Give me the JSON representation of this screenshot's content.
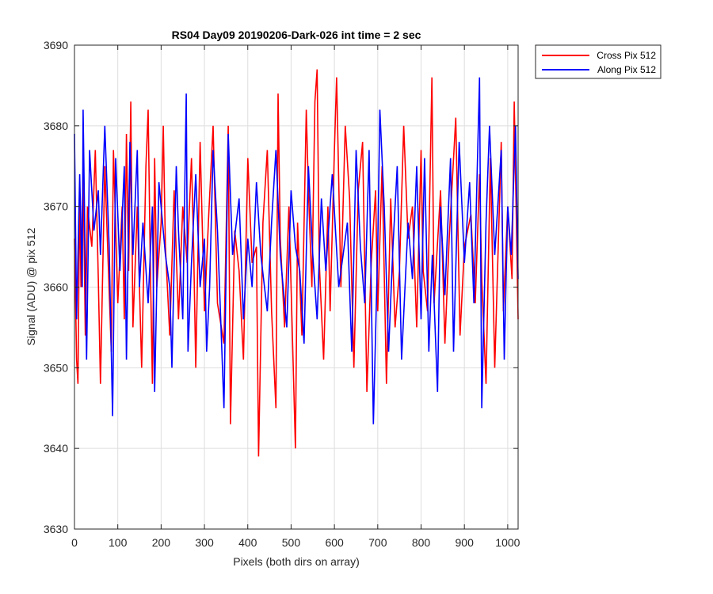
{
  "chart_data": {
    "type": "line",
    "title": "RS04 Day09 20190206-Dark-026 int time = 2 sec",
    "xlabel": "Pixels (both dirs on array)",
    "ylabel": "Signal (ADU) @ pix 512",
    "xlim": [
      0,
      1024
    ],
    "ylim": [
      3630,
      3690
    ],
    "xticks": [
      0,
      100,
      200,
      300,
      400,
      500,
      600,
      700,
      800,
      900,
      1000
    ],
    "yticks": [
      3630,
      3640,
      3650,
      3660,
      3670,
      3680,
      3690
    ],
    "grid": true,
    "legend_position": "outside-top-right",
    "series_mean": 3666,
    "series": [
      {
        "name": "Cross Pix 512",
        "color": "#ff0000",
        "points": [
          [
            0,
            3666
          ],
          [
            5,
            3651
          ],
          [
            8,
            3648
          ],
          [
            12,
            3672
          ],
          [
            15,
            3660
          ],
          [
            20,
            3675
          ],
          [
            25,
            3654
          ],
          [
            30,
            3670
          ],
          [
            40,
            3665
          ],
          [
            48,
            3677
          ],
          [
            55,
            3661
          ],
          [
            60,
            3648
          ],
          [
            70,
            3675
          ],
          [
            85,
            3652
          ],
          [
            90,
            3677
          ],
          [
            100,
            3658
          ],
          [
            110,
            3670
          ],
          [
            115,
            3656
          ],
          [
            120,
            3679
          ],
          [
            125,
            3662
          ],
          [
            130,
            3683
          ],
          [
            135,
            3655
          ],
          [
            145,
            3670
          ],
          [
            155,
            3650
          ],
          [
            165,
            3675
          ],
          [
            170,
            3682
          ],
          [
            175,
            3663
          ],
          [
            180,
            3648
          ],
          [
            185,
            3676
          ],
          [
            190,
            3660
          ],
          [
            200,
            3668
          ],
          [
            205,
            3680
          ],
          [
            210,
            3665
          ],
          [
            220,
            3654
          ],
          [
            230,
            3672
          ],
          [
            240,
            3656
          ],
          [
            250,
            3670
          ],
          [
            260,
            3663
          ],
          [
            270,
            3676
          ],
          [
            275,
            3665
          ],
          [
            280,
            3650
          ],
          [
            290,
            3678
          ],
          [
            300,
            3657
          ],
          [
            310,
            3669
          ],
          [
            320,
            3680
          ],
          [
            330,
            3658
          ],
          [
            345,
            3653
          ],
          [
            355,
            3680
          ],
          [
            360,
            3643
          ],
          [
            370,
            3667
          ],
          [
            380,
            3662
          ],
          [
            390,
            3651
          ],
          [
            400,
            3676
          ],
          [
            410,
            3663
          ],
          [
            420,
            3665
          ],
          [
            425,
            3639
          ],
          [
            435,
            3668
          ],
          [
            445,
            3677
          ],
          [
            455,
            3657
          ],
          [
            465,
            3645
          ],
          [
            470,
            3684
          ],
          [
            475,
            3666
          ],
          [
            485,
            3655
          ],
          [
            495,
            3670
          ],
          [
            510,
            3640
          ],
          [
            515,
            3668
          ],
          [
            525,
            3654
          ],
          [
            535,
            3682
          ],
          [
            540,
            3672
          ],
          [
            548,
            3660
          ],
          [
            555,
            3683
          ],
          [
            560,
            3687
          ],
          [
            565,
            3663
          ],
          [
            575,
            3651
          ],
          [
            585,
            3670
          ],
          [
            590,
            3657
          ],
          [
            600,
            3677
          ],
          [
            605,
            3686
          ],
          [
            615,
            3660
          ],
          [
            625,
            3680
          ],
          [
            635,
            3671
          ],
          [
            645,
            3650
          ],
          [
            655,
            3672
          ],
          [
            665,
            3678
          ],
          [
            675,
            3647
          ],
          [
            685,
            3663
          ],
          [
            695,
            3672
          ],
          [
            700,
            3657
          ],
          [
            710,
            3675
          ],
          [
            720,
            3648
          ],
          [
            730,
            3671
          ],
          [
            740,
            3655
          ],
          [
            750,
            3662
          ],
          [
            760,
            3680
          ],
          [
            770,
            3666
          ],
          [
            780,
            3670
          ],
          [
            790,
            3655
          ],
          [
            800,
            3677
          ],
          [
            805,
            3662
          ],
          [
            815,
            3657
          ],
          [
            825,
            3686
          ],
          [
            830,
            3658
          ],
          [
            845,
            3672
          ],
          [
            855,
            3653
          ],
          [
            865,
            3666
          ],
          [
            880,
            3681
          ],
          [
            890,
            3654
          ],
          [
            900,
            3665
          ],
          [
            915,
            3669
          ],
          [
            925,
            3658
          ],
          [
            935,
            3674
          ],
          [
            940,
            3661
          ],
          [
            950,
            3648
          ],
          [
            960,
            3676
          ],
          [
            970,
            3650
          ],
          [
            985,
            3678
          ],
          [
            990,
            3657
          ],
          [
            1000,
            3670
          ],
          [
            1010,
            3661
          ],
          [
            1015,
            3683
          ],
          [
            1024,
            3656
          ]
        ]
      },
      {
        "name": "Along Pix 512",
        "color": "#0000ff",
        "points": [
          [
            0,
            3679
          ],
          [
            5,
            3656
          ],
          [
            12,
            3674
          ],
          [
            18,
            3660
          ],
          [
            20,
            3682
          ],
          [
            28,
            3651
          ],
          [
            35,
            3677
          ],
          [
            45,
            3667
          ],
          [
            55,
            3672
          ],
          [
            60,
            3664
          ],
          [
            70,
            3680
          ],
          [
            80,
            3665
          ],
          [
            88,
            3644
          ],
          [
            95,
            3676
          ],
          [
            105,
            3662
          ],
          [
            115,
            3675
          ],
          [
            120,
            3651
          ],
          [
            128,
            3678
          ],
          [
            135,
            3664
          ],
          [
            145,
            3677
          ],
          [
            150,
            3660
          ],
          [
            158,
            3668
          ],
          [
            170,
            3658
          ],
          [
            180,
            3670
          ],
          [
            185,
            3647
          ],
          [
            195,
            3673
          ],
          [
            210,
            3664
          ],
          [
            220,
            3660
          ],
          [
            225,
            3650
          ],
          [
            235,
            3675
          ],
          [
            240,
            3667
          ],
          [
            250,
            3656
          ],
          [
            258,
            3684
          ],
          [
            262,
            3652
          ],
          [
            270,
            3663
          ],
          [
            280,
            3674
          ],
          [
            290,
            3660
          ],
          [
            300,
            3666
          ],
          [
            305,
            3652
          ],
          [
            312,
            3660
          ],
          [
            320,
            3677
          ],
          [
            330,
            3667
          ],
          [
            345,
            3645
          ],
          [
            355,
            3679
          ],
          [
            365,
            3664
          ],
          [
            380,
            3671
          ],
          [
            390,
            3656
          ],
          [
            400,
            3666
          ],
          [
            410,
            3660
          ],
          [
            420,
            3673
          ],
          [
            430,
            3664
          ],
          [
            445,
            3657
          ],
          [
            455,
            3668
          ],
          [
            465,
            3677
          ],
          [
            475,
            3664
          ],
          [
            490,
            3655
          ],
          [
            500,
            3672
          ],
          [
            510,
            3665
          ],
          [
            520,
            3662
          ],
          [
            530,
            3653
          ],
          [
            540,
            3675
          ],
          [
            550,
            3664
          ],
          [
            560,
            3656
          ],
          [
            570,
            3671
          ],
          [
            580,
            3662
          ],
          [
            595,
            3674
          ],
          [
            610,
            3660
          ],
          [
            620,
            3664
          ],
          [
            630,
            3668
          ],
          [
            640,
            3652
          ],
          [
            650,
            3677
          ],
          [
            660,
            3665
          ],
          [
            670,
            3658
          ],
          [
            680,
            3677
          ],
          [
            690,
            3643
          ],
          [
            700,
            3665
          ],
          [
            705,
            3682
          ],
          [
            715,
            3670
          ],
          [
            725,
            3652
          ],
          [
            735,
            3665
          ],
          [
            745,
            3675
          ],
          [
            755,
            3651
          ],
          [
            770,
            3668
          ],
          [
            780,
            3661
          ],
          [
            790,
            3675
          ],
          [
            800,
            3656
          ],
          [
            808,
            3676
          ],
          [
            818,
            3652
          ],
          [
            826,
            3664
          ],
          [
            838,
            3647
          ],
          [
            845,
            3670
          ],
          [
            855,
            3659
          ],
          [
            868,
            3676
          ],
          [
            875,
            3652
          ],
          [
            888,
            3678
          ],
          [
            900,
            3663
          ],
          [
            912,
            3673
          ],
          [
            922,
            3658
          ],
          [
            935,
            3686
          ],
          [
            940,
            3645
          ],
          [
            950,
            3668
          ],
          [
            958,
            3680
          ],
          [
            970,
            3664
          ],
          [
            985,
            3677
          ],
          [
            992,
            3651
          ],
          [
            1000,
            3670
          ],
          [
            1008,
            3664
          ],
          [
            1018,
            3680
          ],
          [
            1024,
            3661
          ]
        ]
      }
    ]
  }
}
